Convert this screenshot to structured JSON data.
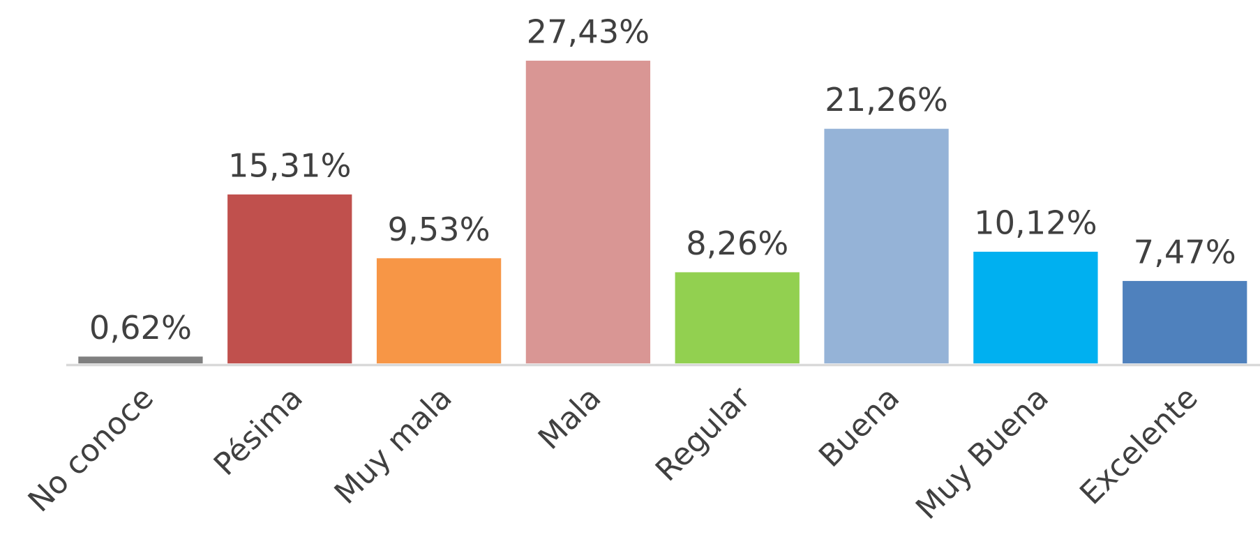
{
  "chart_data": {
    "type": "bar",
    "categories": [
      "No conoce",
      "Pésima",
      "Muy mala",
      "Mala",
      "Regular",
      "Buena",
      "Muy Buena",
      "Excelente"
    ],
    "values": [
      0.62,
      15.31,
      9.53,
      27.43,
      8.26,
      21.26,
      10.12,
      7.47
    ],
    "value_labels": [
      "0,62%",
      "15,31%",
      "9,53%",
      "27,43%",
      "8,26%",
      "21,26%",
      "10,12%",
      "7,47%"
    ],
    "colors": [
      "#7f7f7f",
      "#c0504d",
      "#f79646",
      "#d99694",
      "#92d050",
      "#95b3d7",
      "#00b0f0",
      "#4f81bd"
    ]
  }
}
